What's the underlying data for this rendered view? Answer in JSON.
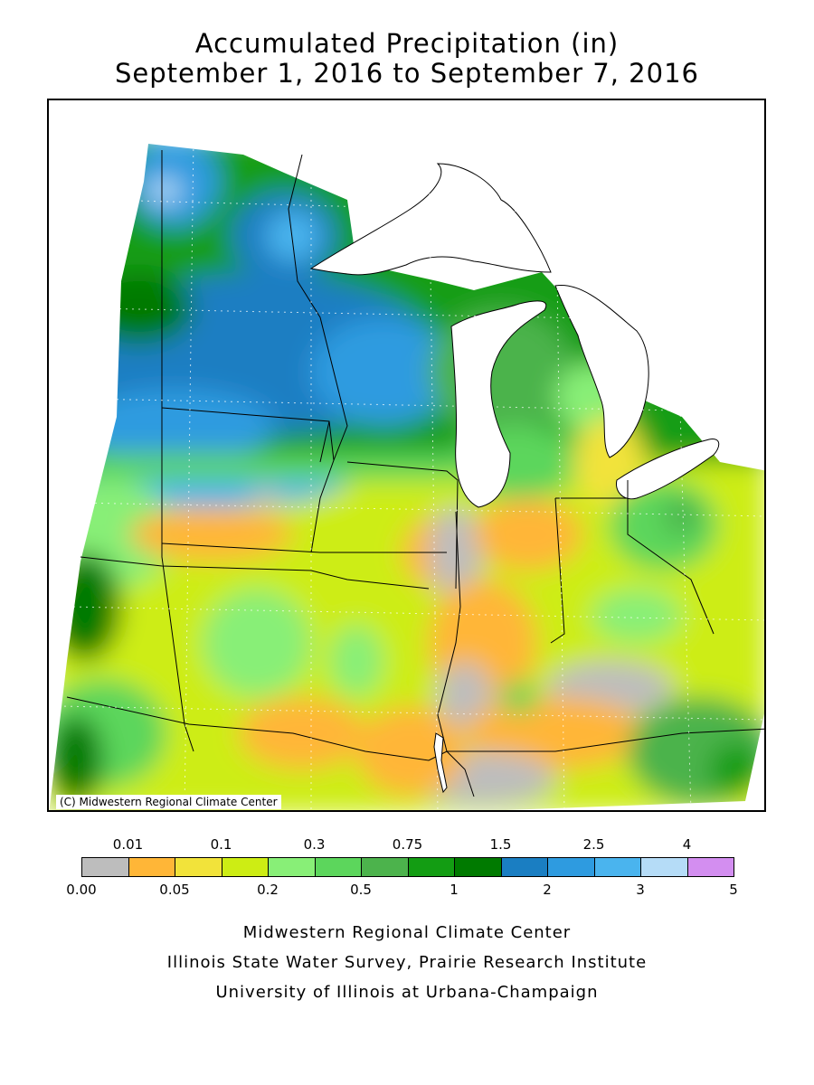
{
  "title": {
    "line1": "Accumulated Precipitation (in)",
    "line2": "September 1, 2016 to September 7, 2016"
  },
  "map": {
    "credit": "(C) Midwestern Regional Climate Center",
    "region_colors": {
      "dry": "#bdbdbd",
      "orange": "#ffb637",
      "yellow": "#f2e33a",
      "yellowgreen": "#cded14",
      "lightgreen": "#88ef77",
      "green": "#5cd65c",
      "midgreen": "#4cb34c",
      "darkgreen": "#139d13",
      "forest": "#007a00",
      "blue": "#1a7ec2",
      "skyblue": "#2e9be0",
      "lightblue": "#4ab4ee",
      "paleblue": "#b5dcf7"
    }
  },
  "legend": {
    "top_labels": [
      "0.01",
      "0.1",
      "0.3",
      "0.75",
      "1.5",
      "2.5",
      "4"
    ],
    "bottom_labels": [
      "0.00",
      "0.05",
      "0.2",
      "0.5",
      "1",
      "2",
      "3",
      "5"
    ],
    "colors": [
      "#bdbdbd",
      "#ffb637",
      "#f2e33a",
      "#cded14",
      "#88ef77",
      "#5cd65c",
      "#4cb34c",
      "#139d13",
      "#007a00",
      "#1a7ec2",
      "#2e9be0",
      "#4ab4ee",
      "#b5dcf7",
      "#d38ef0"
    ]
  },
  "footer": {
    "line1": "Midwestern Regional Climate Center",
    "line2": "Illinois State Water Survey, Prairie Research Institute",
    "line3": "University of Illinois at Urbana-Champaign"
  }
}
